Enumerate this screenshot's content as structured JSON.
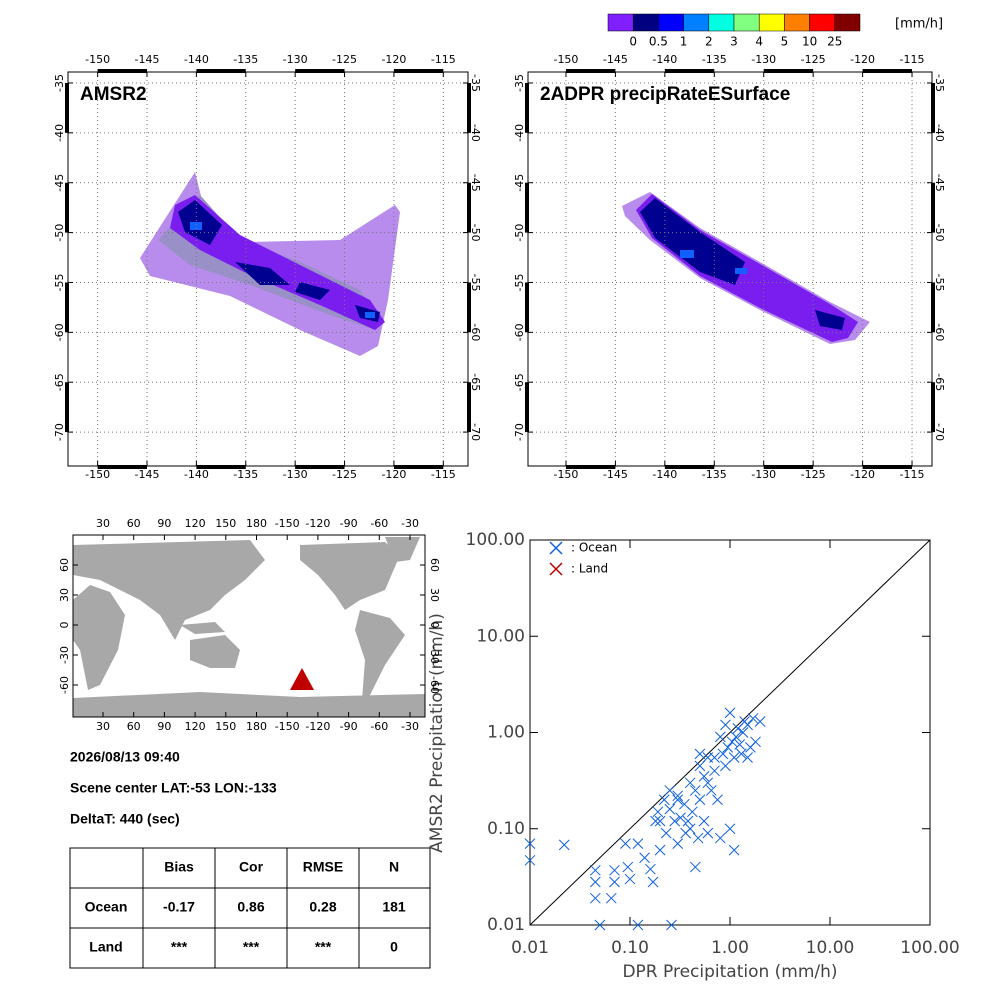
{
  "colorbar": {
    "levels": [
      0,
      0.5,
      1,
      2,
      3,
      4,
      5,
      10,
      25
    ],
    "unit": "[mm/h]",
    "colors": [
      "#8020ff",
      "#000080",
      "#0000ff",
      "#0080ff",
      "#00ffe0",
      "#80ff80",
      "#ffff00",
      "#ff8000",
      "#ff0000",
      "#800000"
    ]
  },
  "map_panels": [
    {
      "title": "AMSR2",
      "xlim": [
        -153.0,
        -112.5
      ],
      "ylim": [
        -33.9,
        -73.4
      ],
      "xticks": [
        -150,
        -145,
        -140,
        -135,
        -130,
        -125,
        -120,
        -115
      ],
      "yticks": [
        -35,
        -40,
        -45,
        -50,
        -55,
        -60,
        -65,
        -70
      ]
    },
    {
      "title": "2ADPR precipRateESurface",
      "xlim": [
        -153.84,
        -112.98
      ],
      "ylim": [
        -33.9,
        -73.4
      ],
      "xticks": [
        -150,
        -145,
        -140,
        -135,
        -130,
        -125,
        -120,
        -115
      ],
      "yticks": [
        -35,
        -40,
        -45,
        -50,
        -55,
        -60,
        -65,
        -70
      ]
    }
  ],
  "world_map": {
    "lonticks": [
      30,
      60,
      90,
      120,
      150,
      180,
      -150,
      -120,
      -90,
      -60,
      -30
    ],
    "latticks": [
      60,
      30,
      0,
      -30,
      -60
    ]
  },
  "info": {
    "time": "2026/08/13 09:40",
    "scene": "Scene center LAT:-53   LON:-133",
    "delta": "DeltaT:  440 (sec)"
  },
  "table": {
    "header": [
      "Bias",
      "Cor",
      "RMSE",
      "N"
    ],
    "rows": [
      {
        "label": "Ocean",
        "cells": [
          "-0.17",
          "0.86",
          "0.28",
          "181"
        ]
      },
      {
        "label": "Land",
        "cells": [
          "***",
          "***",
          "***",
          "0"
        ]
      }
    ]
  },
  "chart_data": {
    "type": "scatter",
    "xlabel": "DPR Precipitation (mm/h)",
    "ylabel": "AMSR2 Precipitation (mm/h)",
    "log_scale": true,
    "xlim": [
      0.01,
      100
    ],
    "ylim": [
      0.01,
      100
    ],
    "xticks": [
      {
        "value": 0.01,
        "label": "0.01"
      },
      {
        "value": 0.1,
        "label": "0.10"
      },
      {
        "value": 1,
        "label": "1.00"
      },
      {
        "value": 10,
        "label": "10.00"
      },
      {
        "value": 100,
        "label": "100.00"
      }
    ],
    "yticks": [
      {
        "value": 0.01,
        "label": "0.01"
      },
      {
        "value": 0.1,
        "label": "0.10"
      },
      {
        "value": 1,
        "label": "1.00"
      },
      {
        "value": 10,
        "label": "10.00"
      },
      {
        "value": 100,
        "label": "100.00"
      }
    ],
    "series": [
      {
        "name": ": Ocean",
        "color": "#1060e0",
        "x": [
          0.01,
          0.01,
          0.022,
          0.045,
          0.045,
          0.045,
          0.05,
          0.07,
          0.07,
          0.065,
          0.09,
          0.095,
          0.1,
          0.12,
          0.12,
          0.14,
          0.16,
          0.17,
          0.18,
          0.19,
          0.2,
          0.22,
          0.23,
          0.25,
          0.26,
          0.28,
          0.3,
          0.3,
          0.32,
          0.35,
          0.36,
          0.38,
          0.4,
          0.4,
          0.42,
          0.45,
          0.45,
          0.48,
          0.5,
          0.5,
          0.55,
          0.55,
          0.6,
          0.6,
          0.65,
          0.7,
          0.75,
          0.8,
          0.8,
          0.85,
          0.9,
          0.9,
          0.95,
          1.0,
          1.0,
          1.05,
          1.1,
          1.1,
          1.15,
          1.2,
          1.25,
          1.3,
          1.35,
          1.4,
          1.5,
          1.5,
          1.6,
          1.7,
          1.8,
          2.0,
          0.7,
          0.3,
          0.25,
          0.2,
          0.5,
          0.6
        ],
        "y": [
          0.07,
          0.047,
          0.068,
          0.037,
          0.028,
          0.019,
          0.01,
          0.037,
          0.028,
          0.019,
          0.07,
          0.04,
          0.03,
          0.07,
          0.01,
          0.05,
          0.038,
          0.028,
          0.12,
          0.15,
          0.06,
          0.2,
          0.09,
          0.16,
          0.01,
          0.12,
          0.22,
          0.07,
          0.13,
          0.18,
          0.09,
          0.12,
          0.3,
          0.1,
          0.15,
          0.04,
          0.25,
          0.08,
          0.45,
          0.2,
          0.12,
          0.35,
          0.55,
          0.09,
          0.25,
          0.4,
          0.2,
          0.9,
          0.08,
          0.6,
          0.45,
          1.2,
          0.7,
          0.1,
          1.6,
          0.8,
          0.06,
          0.55,
          0.9,
          1.1,
          0.75,
          0.6,
          1.0,
          1.3,
          0.55,
          1.2,
          0.7,
          1.4,
          0.8,
          1.3,
          0.55,
          0.2,
          0.25,
          0.12,
          0.6,
          0.3
        ]
      },
      {
        "name": ": Land",
        "color": "#c00000",
        "x": [],
        "y": []
      }
    ]
  }
}
